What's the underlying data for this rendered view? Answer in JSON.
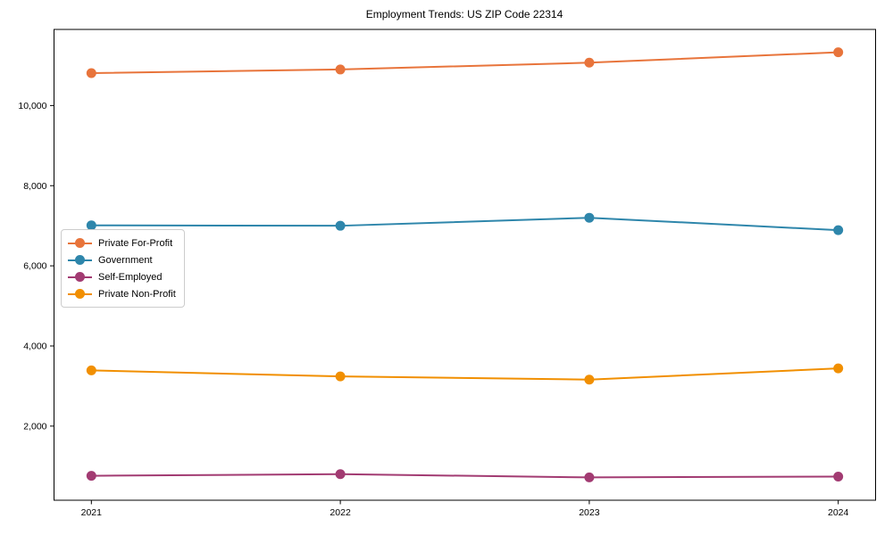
{
  "title": "Employment Trends: US ZIP Code 22314",
  "chart_data": {
    "type": "line",
    "title": "Employment Trends: US ZIP Code 22314",
    "xlabel": "",
    "ylabel": "",
    "x": [
      2021,
      2022,
      2023,
      2024
    ],
    "x_tick_labels": [
      "2021",
      "2022",
      "2023",
      "2024"
    ],
    "y_ticks": [
      2000,
      4000,
      6000,
      8000,
      10000
    ],
    "y_tick_labels": [
      "2,000",
      "4,000",
      "6,000",
      "8,000",
      "10,000"
    ],
    "xlim": [
      2020.85,
      2024.15
    ],
    "ylim": [
      150,
      11900
    ],
    "grid": false,
    "legend_position": "center-left",
    "series": [
      {
        "name": "Private For-Profit",
        "color": "#e8743b",
        "values": [
          10810,
          10900,
          11070,
          11330
        ]
      },
      {
        "name": "Government",
        "color": "#2e86ab",
        "values": [
          7010,
          7000,
          7200,
          6890
        ]
      },
      {
        "name": "Self-Employed",
        "color": "#a23b72",
        "values": [
          760,
          800,
          720,
          740
        ]
      },
      {
        "name": "Private Non-Profit",
        "color": "#f18f01",
        "values": [
          3390,
          3240,
          3160,
          3440
        ]
      }
    ]
  }
}
